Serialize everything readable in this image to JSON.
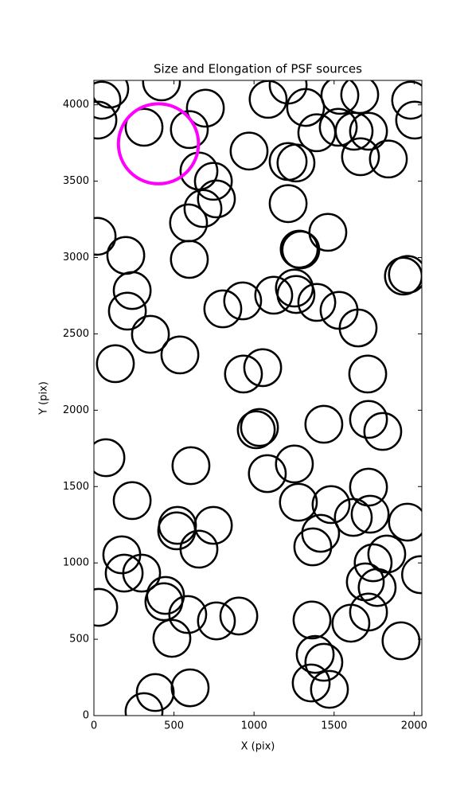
{
  "chart_data": {
    "type": "scatter",
    "title": "Size and Elongation of PSF sources",
    "x_label": "X (pix)",
    "y_label": "Y (pix)",
    "xlim": [
      0,
      2048
    ],
    "ylim": [
      0,
      4160
    ],
    "xticks": [
      0,
      500,
      1000,
      1500,
      2000
    ],
    "yticks": [
      0,
      500,
      1000,
      1500,
      2000,
      2500,
      3000,
      3500,
      4000
    ],
    "series": [
      {
        "color": "#000000",
        "radius": 115,
        "x": [
          99,
          50,
          25,
          422,
          313,
          696,
          596,
          656,
          746,
          765,
          681,
          591,
          596,
          20,
          199,
          239,
          209,
          353,
          537,
          134,
          75,
          239,
          606,
          522,
          517,
          746,
          656,
          174,
          189,
          298,
          447,
          437,
          586,
          487,
          765,
          905,
          30,
          383,
          313,
          601,
          1088,
          1213,
          1322,
          1392,
          969,
          1213,
          1262,
          1213,
          1282,
          1461,
          1292,
          805,
          929,
          1123,
          1252,
          1262,
          1392,
          1531,
          1650,
          934,
          1054,
          1014,
          1034,
          1436,
          1710,
          1715,
          1804,
          1252,
          1083,
          1277,
          1481,
          1416,
          1620,
          1715,
          1725,
          1958,
          1367,
          1829,
          1744,
          1695,
          1769,
          2040,
          1605,
          1362,
          1715,
          1918,
          1382,
          1436,
          1357,
          1471,
          1536,
          1660,
          1526,
          1625,
          1715,
          1665,
          1839,
          1978,
          2003,
          1933,
          1958
        ],
        "values": [
          4103,
          4030,
          3900,
          4150,
          3853,
          3978,
          3838,
          3566,
          3499,
          3384,
          3321,
          3227,
          2988,
          3139,
          3014,
          2784,
          2649,
          2497,
          2362,
          2305,
          1689,
          1408,
          1637,
          1246,
          1210,
          1246,
          1090,
          1053,
          933,
          933,
          787,
          746,
          662,
          506,
          620,
          652,
          709,
          151,
          26,
          182,
          4036,
          4129,
          3983,
          3817,
          3697,
          3629,
          3619,
          3353,
          3055,
          3165,
          3050,
          2664,
          2716,
          2753,
          2800,
          2758,
          2706,
          2654,
          2539,
          2237,
          2279,
          1872,
          1887,
          1908,
          2237,
          1940,
          1861,
          1648,
          1585,
          1397,
          1382,
          1194,
          1298,
          1496,
          1319,
          1267,
          1105,
          1058,
          1001,
          876,
          839,
          923,
          605,
          626,
          678,
          490,
          401,
          349,
          214,
          172,
          4062,
          4067,
          3853,
          3827,
          3827,
          3660,
          3645,
          4030,
          3900,
          2878,
          2889
        ]
      },
      {
        "color": "#ff00ff",
        "radius": 250,
        "x": [
          403
        ],
        "values": [
          3745
        ]
      }
    ]
  }
}
